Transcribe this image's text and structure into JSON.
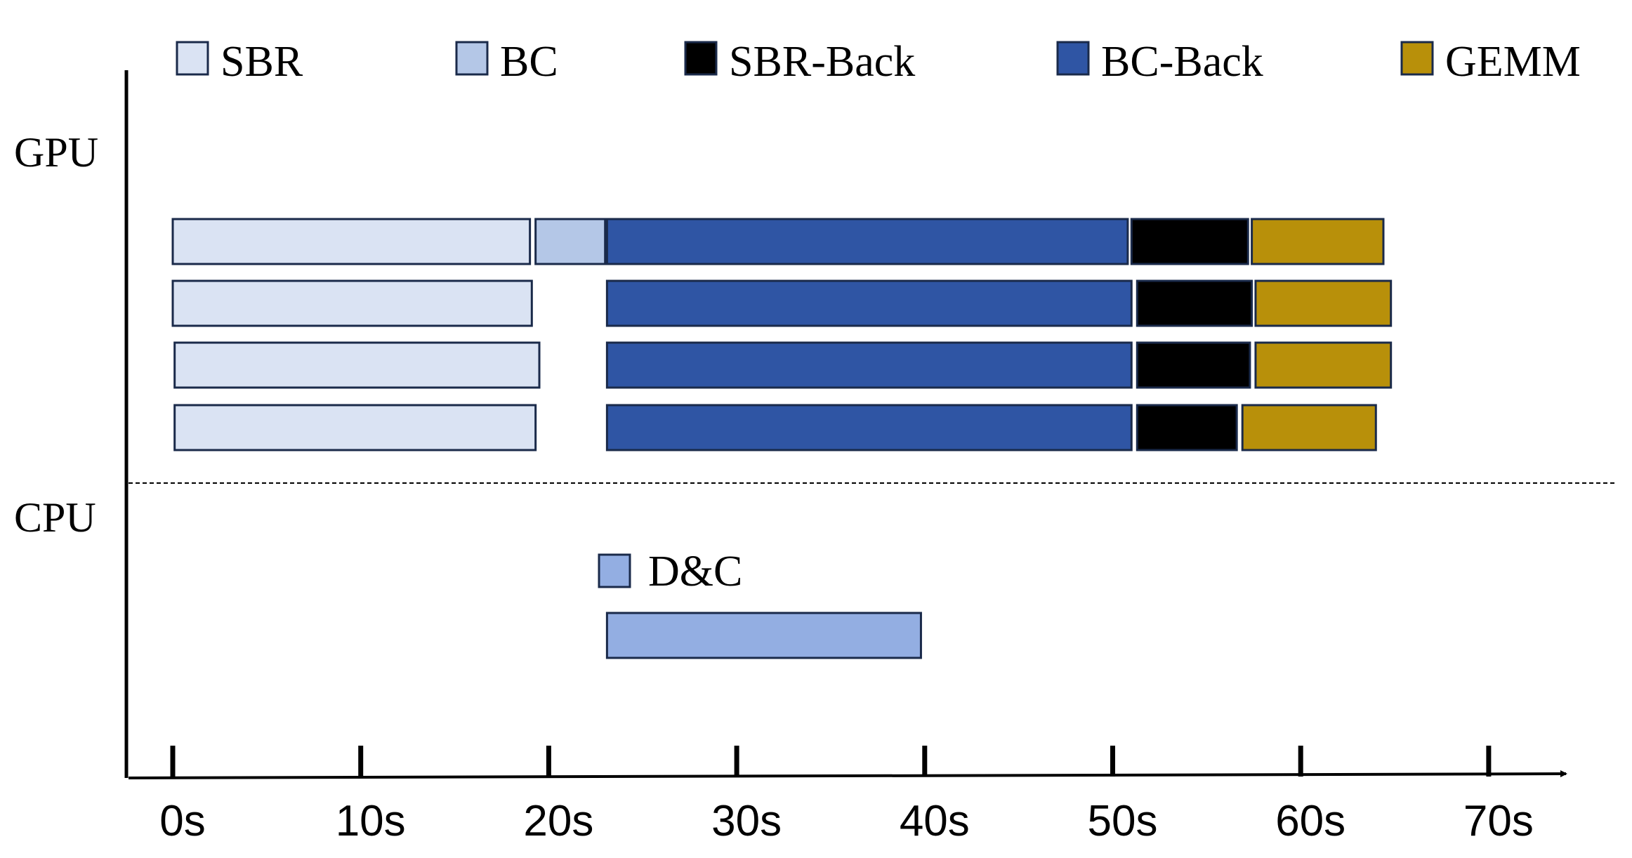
{
  "chart_data": {
    "type": "gantt",
    "title": "",
    "xlabel": "",
    "ylabel": "",
    "x_unit": "s",
    "xlim": [
      0,
      70
    ],
    "x_ticks": [
      0,
      10,
      20,
      30,
      40,
      50,
      60,
      70
    ],
    "x_tick_labels": [
      "0s",
      "10s",
      "20s",
      "30s",
      "40s",
      "50s",
      "60s",
      "70s"
    ],
    "row_labels": {
      "gpu": "GPU",
      "cpu": "CPU"
    },
    "legend": [
      {
        "name": "SBR",
        "color": "#dae3f3"
      },
      {
        "name": "BC",
        "color": "#b4c7e7"
      },
      {
        "name": "SBR-Back",
        "color": "#000000"
      },
      {
        "name": "BC-Back",
        "color": "#2f55a4"
      },
      {
        "name": "GEMM",
        "color": "#b8900a"
      }
    ],
    "cpu_legend": [
      {
        "name": "D&C",
        "color": "#93aee2"
      }
    ],
    "gpu_lanes": [
      {
        "tasks": [
          {
            "name": "SBR",
            "start": 0,
            "end": 19.0
          },
          {
            "name": "BC",
            "start": 19.3,
            "end": 23.0
          },
          {
            "name": "BC-Back",
            "start": 23.1,
            "end": 50.8
          },
          {
            "name": "SBR-Back",
            "start": 51.0,
            "end": 57.2
          },
          {
            "name": "GEMM",
            "start": 57.4,
            "end": 64.4
          }
        ]
      },
      {
        "tasks": [
          {
            "name": "SBR",
            "start": 0,
            "end": 19.1
          },
          {
            "name": "BC-Back",
            "start": 23.1,
            "end": 51.0
          },
          {
            "name": "SBR-Back",
            "start": 51.3,
            "end": 57.4
          },
          {
            "name": "GEMM",
            "start": 57.6,
            "end": 64.8
          }
        ]
      },
      {
        "tasks": [
          {
            "name": "SBR",
            "start": 0.1,
            "end": 19.5
          },
          {
            "name": "BC-Back",
            "start": 23.1,
            "end": 51.0
          },
          {
            "name": "SBR-Back",
            "start": 51.3,
            "end": 57.3
          },
          {
            "name": "GEMM",
            "start": 57.6,
            "end": 64.8
          }
        ]
      },
      {
        "tasks": [
          {
            "name": "SBR",
            "start": 0.1,
            "end": 19.3
          },
          {
            "name": "BC-Back",
            "start": 23.1,
            "end": 51.0
          },
          {
            "name": "SBR-Back",
            "start": 51.3,
            "end": 56.6
          },
          {
            "name": "GEMM",
            "start": 56.9,
            "end": 64.0
          }
        ]
      }
    ],
    "cpu_lanes": [
      {
        "tasks": [
          {
            "name": "D&C",
            "start": 23.1,
            "end": 39.8
          }
        ]
      }
    ],
    "grid": false
  }
}
